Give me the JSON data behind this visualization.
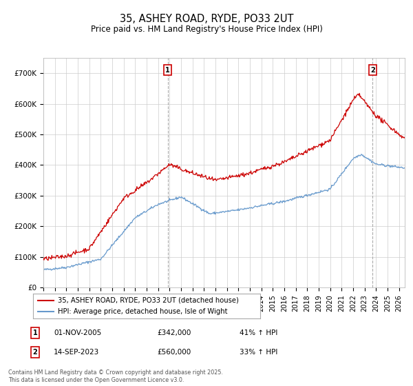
{
  "title": "35, ASHEY ROAD, RYDE, PO33 2UT",
  "subtitle": "Price paid vs. HM Land Registry's House Price Index (HPI)",
  "legend_label_red": "35, ASHEY ROAD, RYDE, PO33 2UT (detached house)",
  "legend_label_blue": "HPI: Average price, detached house, Isle of Wight",
  "footer": "Contains HM Land Registry data © Crown copyright and database right 2025.\nThis data is licensed under the Open Government Licence v3.0.",
  "ann1_label": "1",
  "ann1_date": "01-NOV-2005",
  "ann1_price": "£342,000",
  "ann1_hpi": "41% ↑ HPI",
  "ann1_x": 2005.833,
  "ann2_label": "2",
  "ann2_date": "14-SEP-2023",
  "ann2_price": "£560,000",
  "ann2_hpi": "33% ↑ HPI",
  "ann2_x": 2023.708,
  "red_color": "#cc0000",
  "blue_color": "#6699cc",
  "grid_color": "#cccccc",
  "ylim_min": 0,
  "ylim_max": 750000,
  "xlim_min": 1995.0,
  "xlim_max": 2026.5,
  "yticks": [
    0,
    100000,
    200000,
    300000,
    400000,
    500000,
    600000,
    700000
  ],
  "ytick_labels": [
    "£0",
    "£100K",
    "£200K",
    "£300K",
    "£400K",
    "£500K",
    "£600K",
    "£700K"
  ],
  "xticks": [
    1995,
    1996,
    1997,
    1998,
    1999,
    2000,
    2001,
    2002,
    2003,
    2004,
    2005,
    2006,
    2007,
    2008,
    2009,
    2010,
    2011,
    2012,
    2013,
    2014,
    2015,
    2016,
    2017,
    2018,
    2019,
    2020,
    2021,
    2022,
    2023,
    2024,
    2025,
    2026
  ]
}
